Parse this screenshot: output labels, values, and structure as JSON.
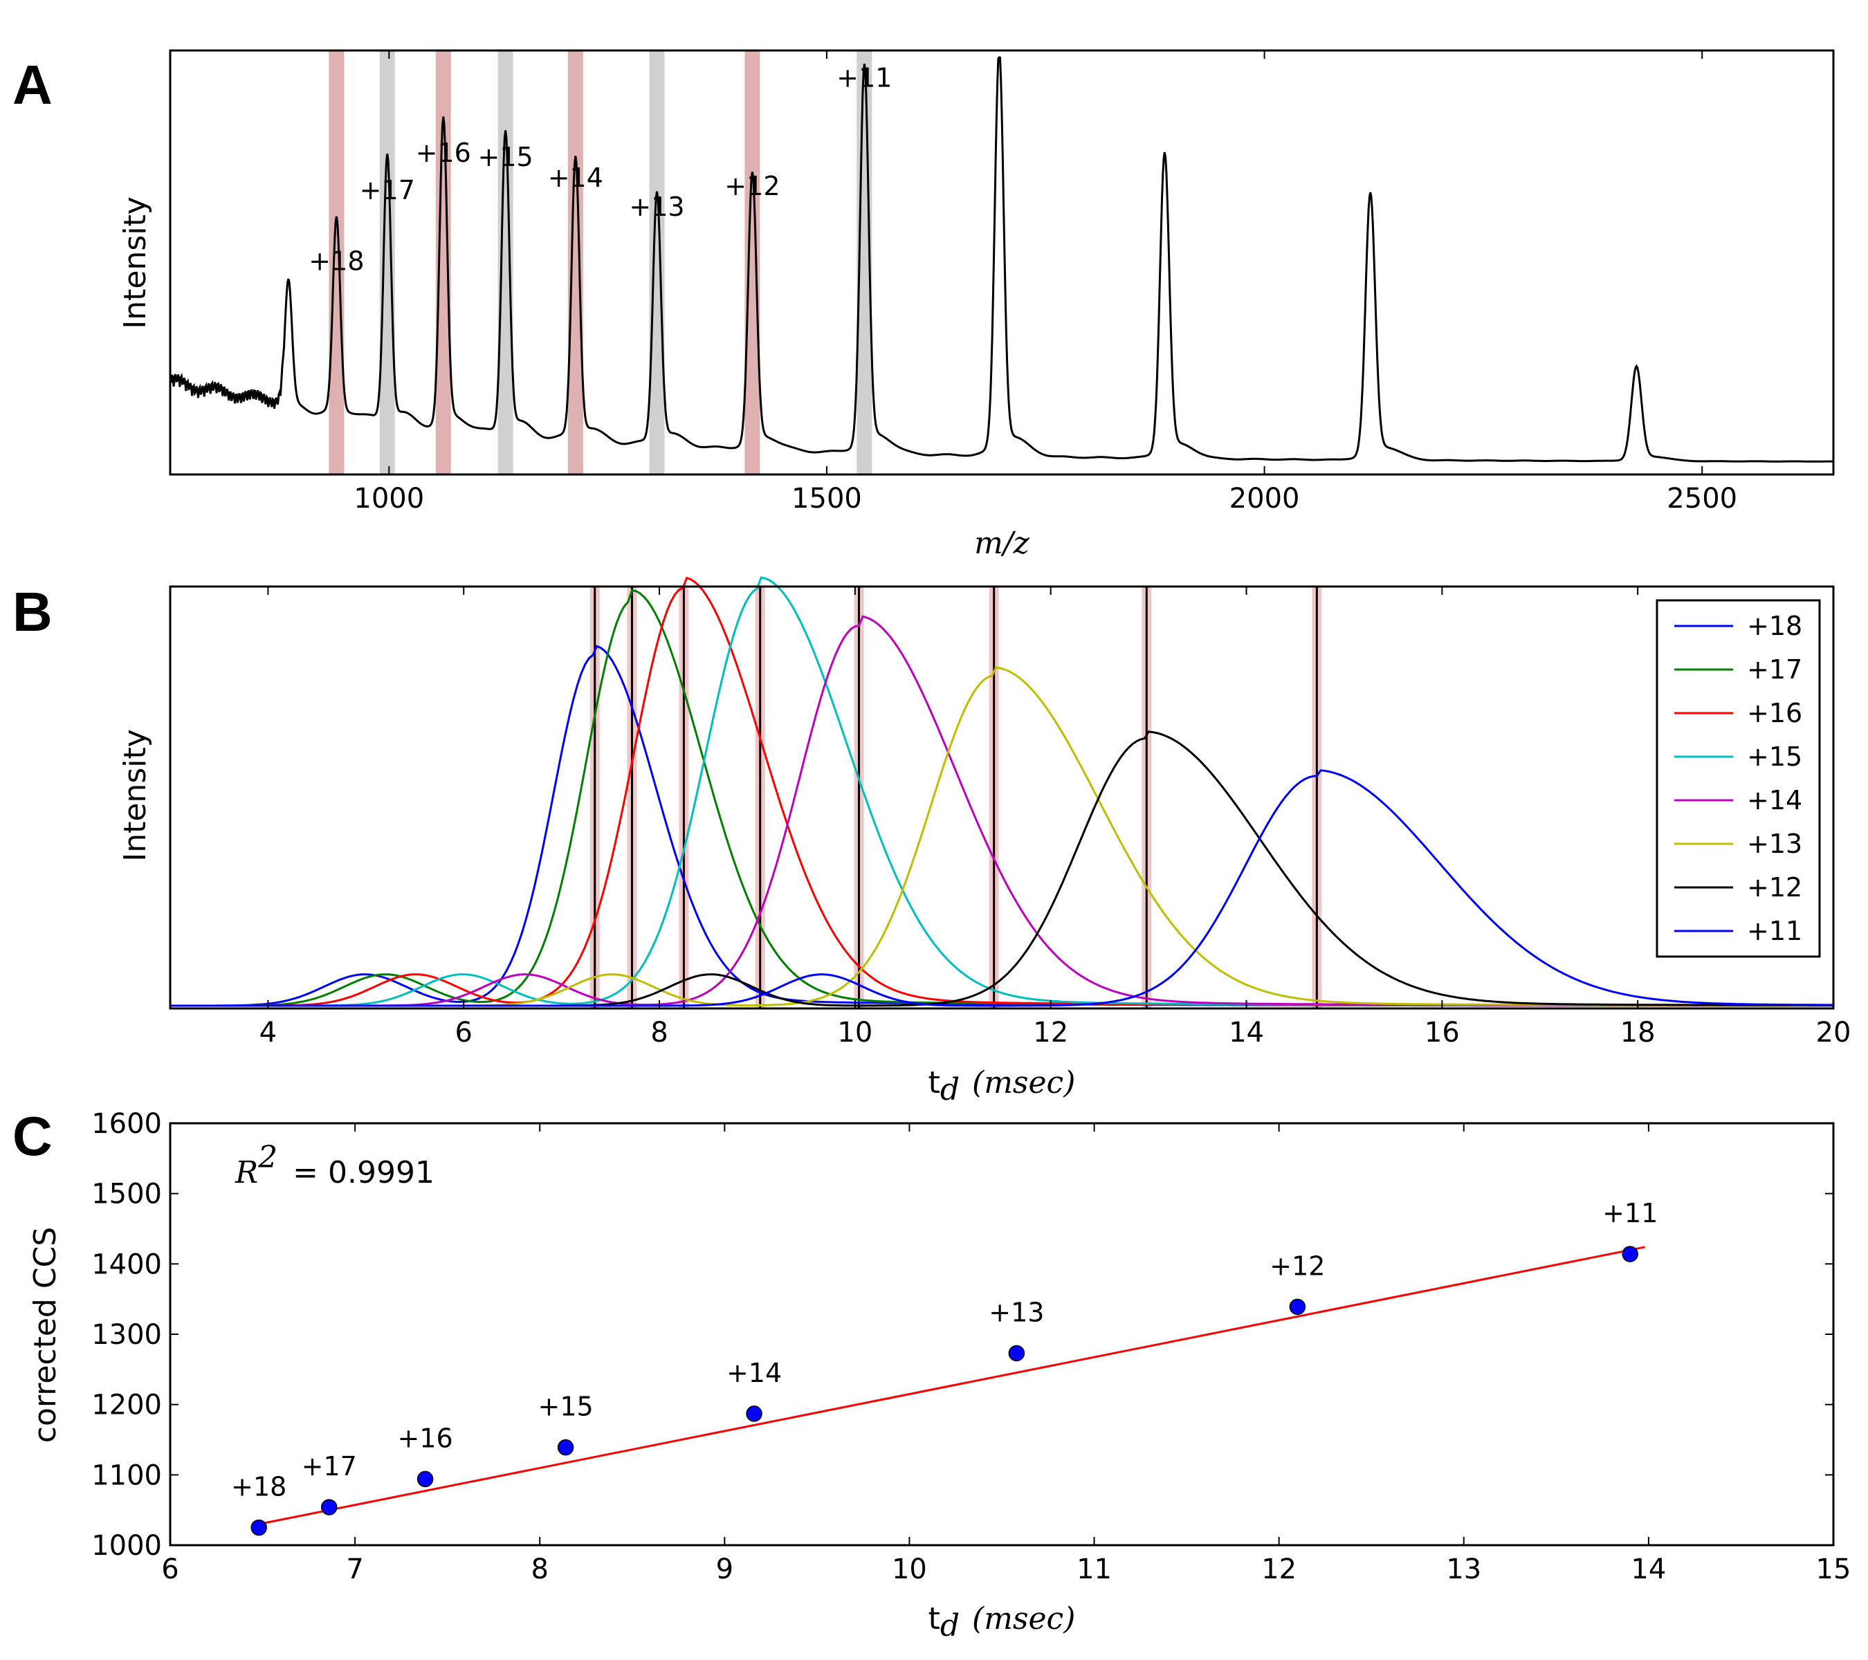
{
  "panels": {
    "A": {
      "label": "A"
    },
    "B": {
      "label": "B"
    },
    "C": {
      "label": "C"
    }
  },
  "chart_data": [
    {
      "panel": "A",
      "type": "line",
      "ylabel": "Intensity",
      "xlabel": "m/z",
      "xlim": [
        750,
        2650
      ],
      "xticks": [
        1000,
        1500,
        2000,
        2500
      ],
      "y_ticks_shown": false,
      "highlight_bands": [
        {
          "x": 940,
          "color": "#d9a3a3"
        },
        {
          "x": 998,
          "color": "#c8c8c8"
        },
        {
          "x": 1062,
          "color": "#d9a3a3"
        },
        {
          "x": 1133,
          "color": "#c8c8c8"
        },
        {
          "x": 1213,
          "color": "#d9a3a3"
        },
        {
          "x": 1306,
          "color": "#c8c8c8"
        },
        {
          "x": 1415,
          "color": "#d9a3a3"
        },
        {
          "x": 1543,
          "color": "#c8c8c8"
        }
      ],
      "peaks": [
        {
          "mz": 885,
          "height": 0.3
        },
        {
          "mz": 940,
          "height": 0.46,
          "label": "+18"
        },
        {
          "mz": 998,
          "height": 0.63,
          "label": "+17"
        },
        {
          "mz": 1062,
          "height": 0.72,
          "label": "+16"
        },
        {
          "mz": 1133,
          "height": 0.71,
          "label": "+15"
        },
        {
          "mz": 1213,
          "height": 0.66,
          "label": "+14"
        },
        {
          "mz": 1306,
          "height": 0.59,
          "label": "+13"
        },
        {
          "mz": 1415,
          "height": 0.64,
          "label": "+12"
        },
        {
          "mz": 1543,
          "height": 0.9,
          "label": "+11"
        },
        {
          "mz": 1697,
          "height": 0.94
        },
        {
          "mz": 1886,
          "height": 0.71
        },
        {
          "mz": 2121,
          "height": 0.62
        },
        {
          "mz": 2425,
          "height": 0.22
        }
      ],
      "peak_labels": [
        "+18",
        "+17",
        "+16",
        "+15",
        "+14",
        "+13",
        "+12",
        "+11"
      ]
    },
    {
      "panel": "B",
      "type": "line",
      "ylabel": "Intensity",
      "xlabel": "t",
      "xlabel_sub": "d",
      "xlabel_unit": "(msec)",
      "xlim": [
        3,
        20
      ],
      "xticks": [
        4,
        6,
        8,
        10,
        12,
        14,
        16,
        18,
        20
      ],
      "y_ticks_shown": false,
      "legend_position": "top-right",
      "vlines_td": [
        7.34,
        7.72,
        8.25,
        9.03,
        10.04,
        11.42,
        12.98,
        14.72
      ],
      "series": [
        {
          "name": "+18",
          "color": "#0000ff",
          "peak_td": 7.34,
          "height": 0.84
        },
        {
          "name": "+17",
          "color": "#008000",
          "peak_td": 7.72,
          "height": 0.97
        },
        {
          "name": "+16",
          "color": "#ff0000",
          "peak_td": 8.25,
          "height": 1.0
        },
        {
          "name": "+15",
          "color": "#00bfbf",
          "peak_td": 9.03,
          "height": 1.0
        },
        {
          "name": "+14",
          "color": "#bf00bf",
          "peak_td": 10.04,
          "height": 0.91
        },
        {
          "name": "+13",
          "color": "#bfbf00",
          "peak_td": 11.42,
          "height": 0.79
        },
        {
          "name": "+12",
          "color": "#000000",
          "peak_td": 12.98,
          "height": 0.64
        },
        {
          "name": "+11",
          "color": "#0000ff",
          "peak_td": 14.72,
          "height": 0.55
        }
      ]
    },
    {
      "panel": "C",
      "type": "scatter",
      "ylabel": "corrected CCS",
      "xlabel": "t",
      "xlabel_sub": "d",
      "xlabel_unit": "(msec)",
      "xlim": [
        6,
        15
      ],
      "ylim": [
        1000,
        1600
      ],
      "xticks": [
        6,
        7,
        8,
        9,
        10,
        11,
        12,
        13,
        14,
        15
      ],
      "yticks": [
        1000,
        1100,
        1200,
        1300,
        1400,
        1500,
        1600
      ],
      "r2_symbol": "R",
      "r2_sup": "2",
      "r2_text": "= 0.9991",
      "fit_line": {
        "x": [
          6.5,
          13.98
        ],
        "y": [
          1031,
          1424
        ],
        "color": "#ff0000"
      },
      "points": [
        {
          "x": 6.48,
          "y": 1025,
          "label": "+18"
        },
        {
          "x": 6.86,
          "y": 1054,
          "label": "+17"
        },
        {
          "x": 7.38,
          "y": 1094,
          "label": "+16"
        },
        {
          "x": 8.14,
          "y": 1139,
          "label": "+15"
        },
        {
          "x": 9.16,
          "y": 1187,
          "label": "+14"
        },
        {
          "x": 10.58,
          "y": 1273,
          "label": "+13"
        },
        {
          "x": 12.1,
          "y": 1339,
          "label": "+12"
        },
        {
          "x": 13.9,
          "y": 1414,
          "label": "+11"
        }
      ],
      "point_color": "#0000ff"
    }
  ]
}
